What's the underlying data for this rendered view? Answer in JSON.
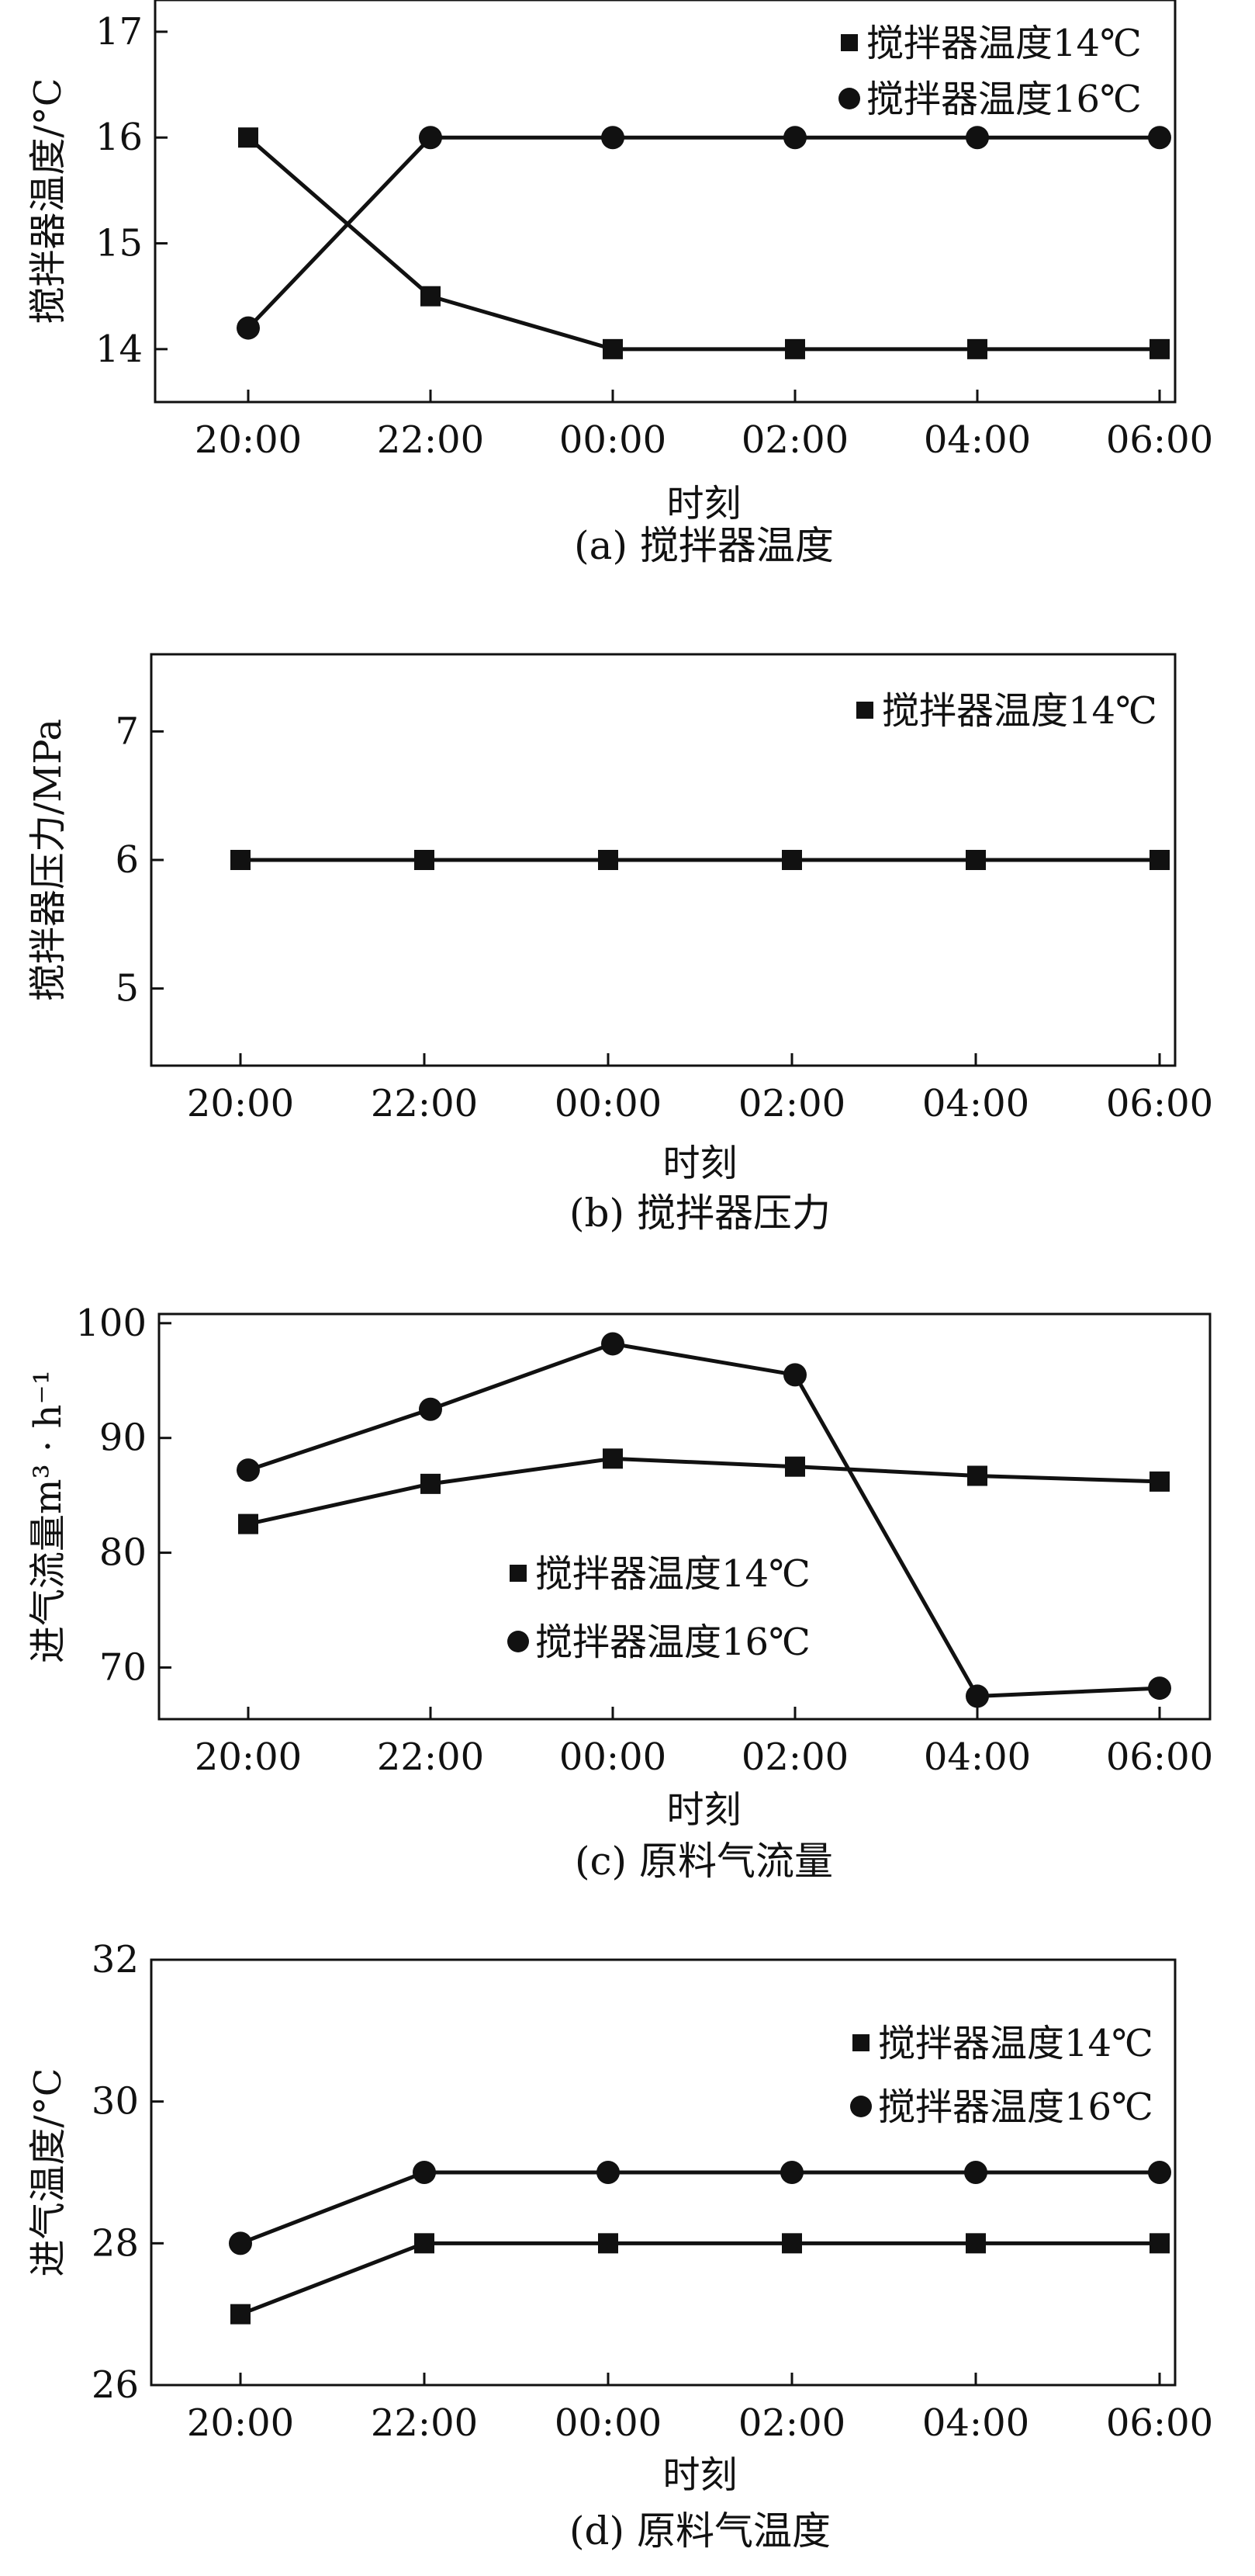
{
  "chart_data": [
    {
      "type": "line",
      "caption": "(a) 搅拌器温度",
      "xlabel": "时刻",
      "ylabel": "搅拌器温度/°C",
      "categories": [
        "20:00",
        "22:00",
        "00:00",
        "02:00",
        "04:00",
        "06:00"
      ],
      "ylim": [
        13.5,
        17.3
      ],
      "yticks": [
        14,
        15,
        16,
        17
      ],
      "grid": false,
      "legend": "top-right",
      "series": [
        {
          "name": "搅拌器温度14℃",
          "marker": "square",
          "values": [
            16,
            14.5,
            14,
            14,
            14,
            14
          ]
        },
        {
          "name": "搅拌器温度16℃",
          "marker": "circle",
          "values": [
            14.2,
            16,
            16,
            16,
            16,
            16
          ]
        }
      ]
    },
    {
      "type": "line",
      "caption": "(b) 搅拌器压力",
      "xlabel": "时刻",
      "ylabel": "搅拌器压力/MPa",
      "categories": [
        "20:00",
        "22:00",
        "00:00",
        "02:00",
        "04:00",
        "06:00"
      ],
      "ylim": [
        4.4,
        7.6
      ],
      "yticks": [
        5,
        6,
        7
      ],
      "grid": false,
      "legend": "top-right",
      "series": [
        {
          "name": "搅拌器温度14℃",
          "marker": "square",
          "values": [
            6,
            6,
            6,
            6,
            6,
            6
          ]
        }
      ]
    },
    {
      "type": "line",
      "caption": "(c) 原料气流量",
      "xlabel": "时刻",
      "ylabel": "进气流量m³ · h⁻¹",
      "categories": [
        "20:00",
        "22:00",
        "00:00",
        "02:00",
        "04:00",
        "06:00"
      ],
      "ylim": [
        65.5,
        100.8
      ],
      "yticks": [
        70,
        80,
        90,
        100
      ],
      "grid": false,
      "legend": "center",
      "series": [
        {
          "name": "搅拌器温度14℃",
          "marker": "square",
          "values": [
            82.5,
            86,
            88.2,
            87.5,
            86.7,
            86.2
          ]
        },
        {
          "name": "搅拌器温度16℃",
          "marker": "circle",
          "values": [
            87.2,
            92.5,
            98.2,
            95.5,
            67.5,
            68.2
          ]
        }
      ]
    },
    {
      "type": "line",
      "caption": "(d) 原料气温度",
      "xlabel": "时刻",
      "ylabel": "进气温度/°C",
      "categories": [
        "20:00",
        "22:00",
        "00:00",
        "02:00",
        "04:00",
        "06:00"
      ],
      "ylim": [
        26,
        32
      ],
      "yticks": [
        26,
        28,
        30,
        32
      ],
      "grid": false,
      "legend": "top-right",
      "series": [
        {
          "name": "搅拌器温度14℃",
          "marker": "square",
          "values": [
            27,
            28,
            28,
            28,
            28,
            28
          ]
        },
        {
          "name": "搅拌器温度16℃",
          "marker": "circle",
          "values": [
            28,
            29,
            29,
            29,
            29,
            29
          ]
        }
      ]
    }
  ]
}
